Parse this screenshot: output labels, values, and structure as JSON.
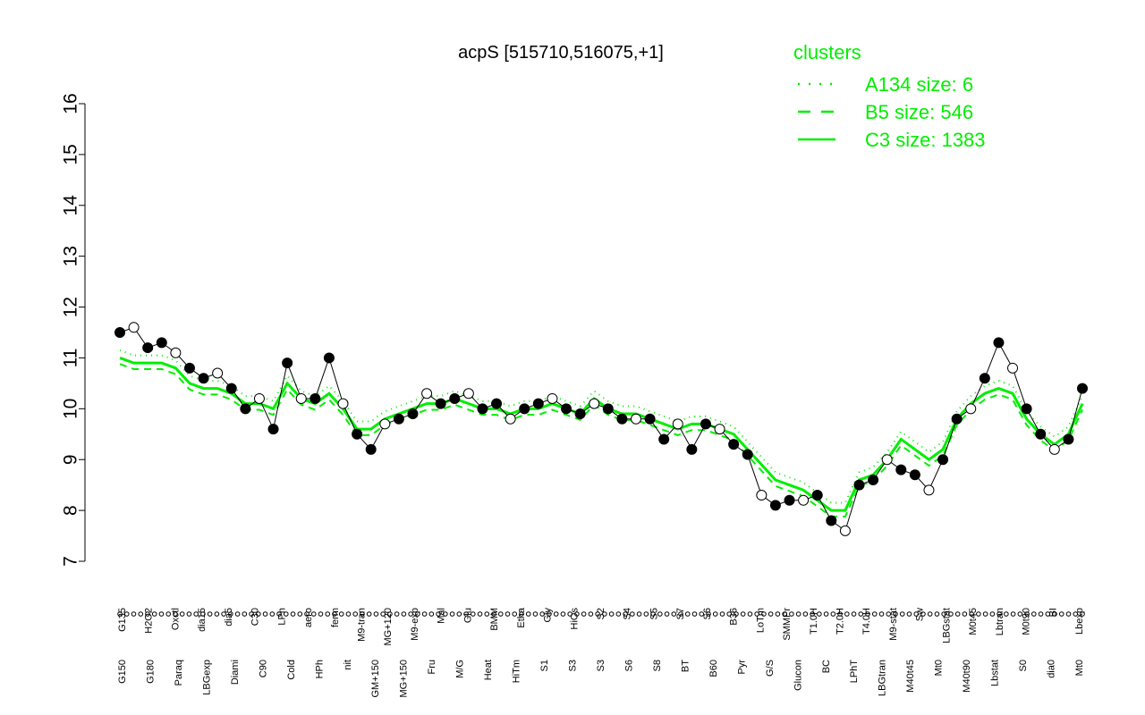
{
  "chart_data": {
    "type": "line",
    "title": "acpS [515710,516075,+1]",
    "xlabel": "",
    "ylabel": "",
    "ylim": [
      7,
      16
    ],
    "yticks": [
      7,
      8,
      9,
      10,
      11,
      12,
      13,
      14,
      15,
      16
    ],
    "grid": false,
    "legend": {
      "title": "clusters",
      "placement": "top-right",
      "color": "#00ee00",
      "entries": [
        {
          "label": "A134 size: 6",
          "style": "dotted"
        },
        {
          "label": "B5 size: 546",
          "style": "dashed"
        },
        {
          "label": "C3 size: 1383",
          "style": "solid"
        }
      ]
    },
    "colors": {
      "points": "#000000",
      "cluster": "#00ee00"
    },
    "labels_lower": [
      "G150",
      "G180",
      "Paraq",
      "LBGexp",
      "Diami",
      "C90",
      "Cold",
      "HPh",
      "nit",
      "GM+150",
      "MG+150",
      "Fru",
      "M/G",
      "Heat",
      "HiTm",
      "S1",
      "S3",
      "S3",
      "S6",
      "S8",
      "BT",
      "B60",
      "Pyr",
      "G/S",
      "Glucon",
      "BC",
      "LPhT",
      "LBGtran",
      "M40t45",
      "Mt0",
      "M40t90",
      "Lbstat",
      "S0",
      "dia0",
      "Mt0"
    ],
    "labels_upper": [
      "G135",
      "H2O2",
      "Oxctl",
      "dia15",
      "dia5",
      "C30",
      "LPh",
      "aero",
      "ferm",
      "M9-tran",
      "MG+120",
      "M9-exp",
      "Mal",
      "Glu",
      "BMM",
      "Etha",
      "Gly",
      "HiOs",
      "S2",
      "S4",
      "S5",
      "S7",
      "S6",
      "B36",
      "LoTm",
      "SMMPr",
      "T1.0H",
      "T2.0H",
      "T4.0H",
      "M9-stat",
      "Sw",
      "LBGstat",
      "M0t45",
      "Lbtran",
      "M0t90",
      "BI",
      "Lbexp"
    ],
    "x": [
      1,
      2,
      3,
      4,
      5,
      6,
      7,
      8,
      9,
      10,
      11,
      12,
      13,
      14,
      15,
      16,
      17,
      18,
      19,
      20,
      21,
      22,
      23,
      24,
      25,
      26,
      27,
      28,
      29,
      30,
      31,
      32,
      33,
      34,
      35,
      36,
      37,
      38,
      39,
      40,
      41,
      42,
      43,
      44,
      45,
      46,
      47,
      48,
      49,
      50,
      51,
      52,
      53,
      54,
      55,
      56,
      57,
      58,
      59,
      60,
      61,
      62,
      63,
      64,
      65,
      66,
      67,
      68,
      69,
      70
    ],
    "observed": [
      11.5,
      11.6,
      11.2,
      11.3,
      11.1,
      10.8,
      10.6,
      10.7,
      10.4,
      10.0,
      10.2,
      9.6,
      10.9,
      10.2,
      10.2,
      11.0,
      10.1,
      9.5,
      9.2,
      9.7,
      9.8,
      9.9,
      10.3,
      10.1,
      10.2,
      10.3,
      10.0,
      10.1,
      9.8,
      10.0,
      10.1,
      10.2,
      10.0,
      9.9,
      10.1,
      10.0,
      9.8,
      9.8,
      9.8,
      9.4,
      9.7,
      9.2,
      9.7,
      9.6,
      9.3,
      9.1,
      8.3,
      8.1,
      8.2,
      8.2,
      8.3,
      7.8,
      7.6,
      8.5,
      8.6,
      9.0,
      8.8,
      8.7,
      8.4,
      9.0,
      9.8,
      10.0,
      10.6,
      11.3,
      10.8,
      10.0,
      9.5,
      9.2,
      9.4,
      10.4
    ],
    "cluster_mean": [
      11.0,
      10.9,
      10.9,
      10.9,
      10.8,
      10.5,
      10.4,
      10.4,
      10.3,
      10.1,
      10.1,
      10.0,
      10.5,
      10.2,
      10.1,
      10.3,
      10.0,
      9.6,
      9.6,
      9.8,
      9.9,
      10.0,
      10.1,
      10.1,
      10.2,
      10.1,
      10.0,
      10.0,
      9.9,
      10.0,
      10.0,
      10.1,
      10.0,
      9.9,
      10.2,
      10.0,
      9.9,
      9.9,
      9.8,
      9.7,
      9.6,
      9.7,
      9.7,
      9.6,
      9.5,
      9.2,
      8.9,
      8.6,
      8.5,
      8.4,
      8.2,
      8.0,
      8.0,
      8.6,
      8.7,
      9.0,
      9.4,
      9.2,
      9.0,
      9.2,
      9.8,
      10.1,
      10.3,
      10.4,
      10.3,
      9.8,
      9.5,
      9.3,
      9.5,
      10.1
    ]
  }
}
